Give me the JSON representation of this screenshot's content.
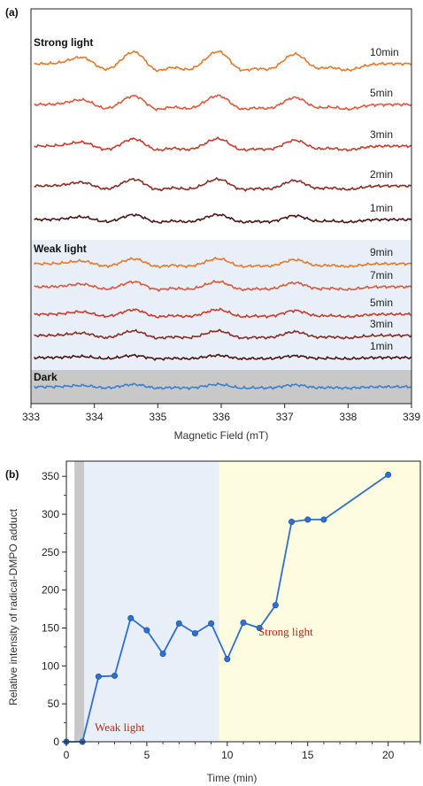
{
  "chart_data": [
    {
      "type": "line",
      "panel_label": "(a)",
      "xlabel": "Magnetic Field (mT)",
      "xlim": [
        333,
        339
      ],
      "xticks": [
        "333",
        "334",
        "335",
        "336",
        "337",
        "338",
        "339"
      ],
      "groups": [
        {
          "name": "Strong light",
          "background": "#ffffff",
          "traces": [
            {
              "name": "10min",
              "color": "#e8782a",
              "amplitude": 1.0
            },
            {
              "name": "5min",
              "color": "#e0563a",
              "amplitude": 0.72
            },
            {
              "name": "3min",
              "color": "#c83c2c",
              "amplitude": 0.6
            },
            {
              "name": "2min",
              "color": "#8e2a22",
              "amplitude": 0.55
            },
            {
              "name": "1min",
              "color": "#4a1512",
              "amplitude": 0.4
            }
          ]
        },
        {
          "name": "Weak light",
          "background": "#e8eff8",
          "traces": [
            {
              "name": "9min",
              "color": "#e8782a",
              "amplitude": 0.42
            },
            {
              "name": "7min",
              "color": "#e0563a",
              "amplitude": 0.42
            },
            {
              "name": "5min",
              "color": "#c83c2c",
              "amplitude": 0.38
            },
            {
              "name": "3min",
              "color": "#8e2a22",
              "amplitude": 0.38
            },
            {
              "name": "1min",
              "color": "#4a1512",
              "amplitude": 0.18
            }
          ]
        },
        {
          "name": "Dark",
          "background": "#c8c8c8",
          "traces": [
            {
              "name": "",
              "color": "#3a7fd0",
              "amplitude": 0.2
            }
          ]
        }
      ]
    },
    {
      "type": "line",
      "panel_label": "(b)",
      "xlabel": "Time (min)",
      "ylabel": "Relative intensity of radical-DMPO adduct",
      "xlim": [
        0,
        22
      ],
      "ylim": [
        0,
        370
      ],
      "xticks": [
        "0",
        "5",
        "10",
        "15",
        "20"
      ],
      "yticks": [
        "0",
        "50",
        "100",
        "150",
        "200",
        "250",
        "300",
        "350"
      ],
      "series": [
        {
          "color": "#2f6fd0",
          "x": [
            0,
            1,
            2,
            3,
            4,
            5,
            6,
            7,
            8,
            9,
            10,
            11,
            12,
            13,
            14,
            15,
            16,
            20
          ],
          "y": [
            0,
            0,
            86,
            87,
            163,
            147,
            116,
            156,
            143,
            156,
            109,
            157,
            150,
            180,
            290,
            293,
            293,
            352
          ]
        }
      ],
      "regions": [
        {
          "label": "",
          "x_start": 0.5,
          "x_end": 1.1,
          "color": "#c8c8c8"
        },
        {
          "label": "Weak light",
          "x_start": 1.1,
          "x_end": 9.5,
          "color": "#e8eff8"
        },
        {
          "label": "Strong light",
          "x_start": 9.5,
          "x_end": 22,
          "color": "#fdfbe0"
        }
      ]
    }
  ]
}
